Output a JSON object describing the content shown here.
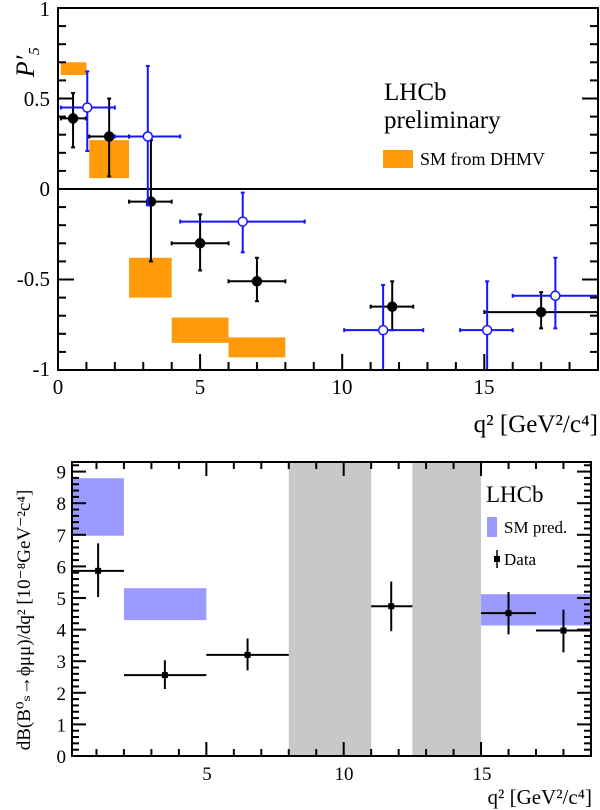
{
  "chart_data": [
    {
      "type": "scatter",
      "ylabel": "P′₅",
      "xlabel": "q² [GeV²/c⁴]",
      "xlim": [
        0,
        19
      ],
      "ylim": [
        -1,
        1
      ],
      "x_ticks": [
        "0",
        "5",
        "10",
        "15"
      ],
      "y_ticks": [
        "1",
        "0.5",
        "0",
        "-0.5",
        "-1"
      ],
      "grid": false,
      "annotation": [
        "LHCb",
        "preliminary"
      ],
      "legend": {
        "position": "top-right",
        "entries": [
          "SM from DHMV"
        ]
      },
      "colors": {
        "sm_band": "#ff9a0a",
        "data_black": "#000000",
        "data_blue": "#1414ff"
      },
      "sm_bands": [
        {
          "xmin": 0.1,
          "xmax": 1.0,
          "ylow": 0.63,
          "yhigh": 0.7
        },
        {
          "xmin": 1.1,
          "xmax": 2.5,
          "ylow": 0.06,
          "yhigh": 0.27
        },
        {
          "xmin": 2.5,
          "xmax": 4.0,
          "ylow": -0.6,
          "yhigh": -0.38
        },
        {
          "xmin": 4.0,
          "xmax": 6.0,
          "ylow": -0.85,
          "yhigh": -0.71
        },
        {
          "xmin": 6.0,
          "xmax": 8.0,
          "ylow": -0.93,
          "yhigh": -0.82
        }
      ],
      "series": [
        {
          "marker": "filled-black",
          "points": [
            {
              "x": 0.53,
              "xlo": 0.1,
              "xhi": 0.98,
              "y": 0.39,
              "ylo": 0.23,
              "yhi": 0.53
            },
            {
              "x": 1.8,
              "xlo": 1.1,
              "xhi": 2.5,
              "y": 0.29,
              "ylo": 0.07,
              "yhi": 0.5
            },
            {
              "x": 3.27,
              "xlo": 2.5,
              "xhi": 4.0,
              "y": -0.07,
              "ylo": -0.4,
              "yhi": 0.27
            },
            {
              "x": 5.0,
              "xlo": 4.0,
              "xhi": 6.0,
              "y": -0.3,
              "ylo": -0.45,
              "yhi": -0.14
            },
            {
              "x": 7.0,
              "xlo": 6.0,
              "xhi": 8.0,
              "y": -0.51,
              "ylo": -0.62,
              "yhi": -0.38
            },
            {
              "x": 11.76,
              "xlo": 11.0,
              "xhi": 12.5,
              "y": -0.65,
              "ylo": -0.78,
              "yhi": -0.51
            },
            {
              "x": 17.0,
              "xlo": 15.0,
              "xhi": 19.0,
              "y": -0.68,
              "ylo": -0.77,
              "yhi": -0.57
            }
          ]
        },
        {
          "marker": "open-blue",
          "points": [
            {
              "x": 1.03,
              "xlo": 0.1,
              "xhi": 2.0,
              "y": 0.45,
              "ylo": 0.21,
              "yhi": 0.65
            },
            {
              "x": 3.16,
              "xlo": 2.0,
              "xhi": 4.3,
              "y": 0.29,
              "ylo": -0.09,
              "yhi": 0.68
            },
            {
              "x": 6.5,
              "xlo": 4.3,
              "xhi": 8.68,
              "y": -0.18,
              "ylo": -0.35,
              "yhi": -0.02
            },
            {
              "x": 11.44,
              "xlo": 10.07,
              "xhi": 12.85,
              "y": -0.78,
              "ylo": -1.0,
              "yhi": -0.53
            },
            {
              "x": 15.1,
              "xlo": 14.15,
              "xhi": 16.0,
              "y": -0.78,
              "ylo": -1.0,
              "yhi": -0.51
            },
            {
              "x": 17.5,
              "xlo": 16.0,
              "xhi": 19.0,
              "y": -0.59,
              "ylo": -0.77,
              "yhi": -0.38
            }
          ]
        }
      ]
    },
    {
      "type": "scatter",
      "ylabel": "dB(B⁰ₛ→ϕμμ)/dq² [10⁻⁸GeV⁻²c⁴]",
      "xlabel": "q² [GeV²/c⁴]",
      "xlim": [
        0,
        19
      ],
      "ylim": [
        0,
        9
      ],
      "x_ticks": [
        "5",
        "10",
        "15"
      ],
      "y_ticks": [
        "0",
        "1",
        "2",
        "3",
        "4",
        "5",
        "6",
        "7",
        "8",
        "9"
      ],
      "grid": false,
      "annotation": [
        "LHCb"
      ],
      "legend": {
        "position": "top-right",
        "entries": [
          "SM pred.",
          "Data"
        ]
      },
      "colors": {
        "sm_band": "#9a9aff",
        "veto": "#c8c8c8",
        "data": "#000000"
      },
      "vetoed_regions": [
        {
          "xmin": 8.0,
          "xmax": 11.0
        },
        {
          "xmin": 12.5,
          "xmax": 15.0
        }
      ],
      "sm_bands": [
        {
          "xmin": 0.1,
          "xmax": 2.0,
          "ylow": 6.97,
          "yhigh": 8.79
        },
        {
          "xmin": 2.0,
          "xmax": 5.0,
          "ylow": 4.3,
          "yhigh": 5.31
        },
        {
          "xmin": 15.0,
          "xmax": 19.0,
          "ylow": 4.13,
          "yhigh": 5.12
        }
      ],
      "series": [
        {
          "name": "Data",
          "points": [
            {
              "x": 1.06,
              "xlo": 0.1,
              "xhi": 2.0,
              "y": 5.86,
              "ylo": 5.03,
              "yhi": 6.73
            },
            {
              "x": 3.49,
              "xlo": 2.0,
              "xhi": 5.0,
              "y": 2.56,
              "ylo": 2.12,
              "yhi": 3.03
            },
            {
              "x": 6.5,
              "xlo": 5.0,
              "xhi": 8.0,
              "y": 3.2,
              "ylo": 2.71,
              "yhi": 3.72
            },
            {
              "x": 11.73,
              "xlo": 11.0,
              "xhi": 12.5,
              "y": 4.74,
              "ylo": 3.95,
              "yhi": 5.52
            },
            {
              "x": 16.0,
              "xlo": 15.0,
              "xhi": 17.0,
              "y": 4.52,
              "ylo": 3.85,
              "yhi": 5.19
            },
            {
              "x": 18.0,
              "xlo": 17.0,
              "xhi": 19.0,
              "y": 3.97,
              "ylo": 3.28,
              "yhi": 4.63
            }
          ]
        }
      ]
    }
  ]
}
